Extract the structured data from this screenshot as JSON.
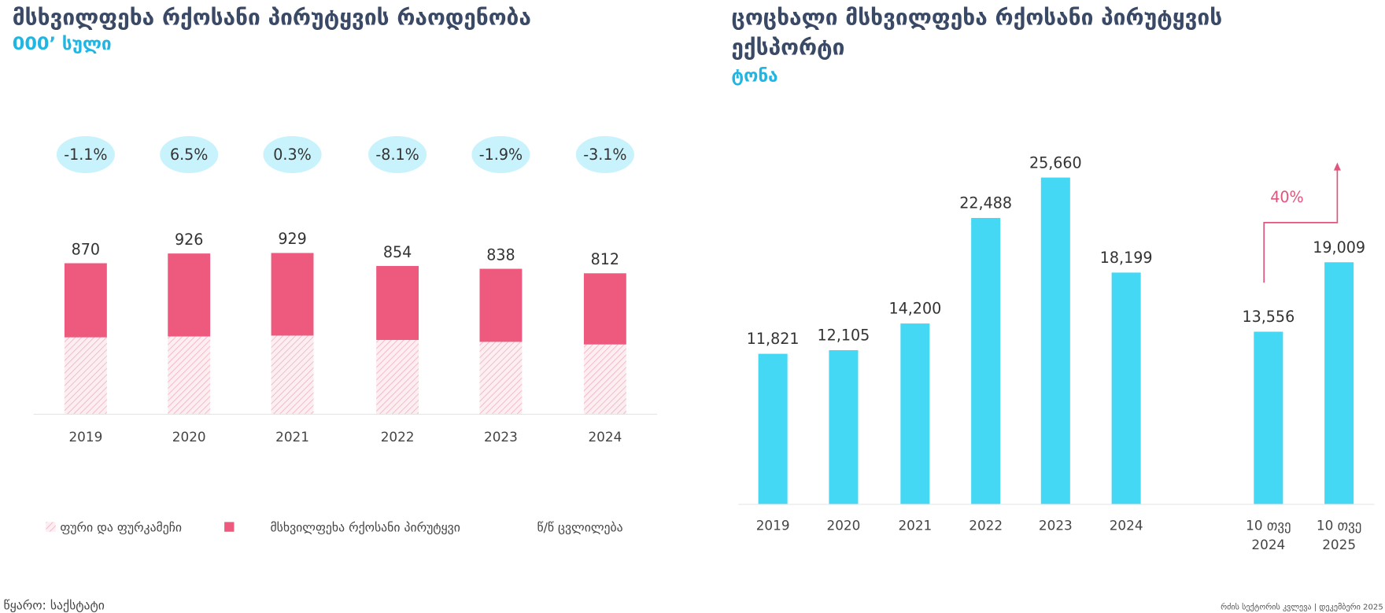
{
  "colors": {
    "pink": "#ee5a7e",
    "hatch": "#f6c3cf",
    "cyan": "#45d8f5",
    "bubble": "#c9f3fc",
    "title": "#3a4a66",
    "subtitle": "#1fb6e4",
    "arrow": "#e0557c"
  },
  "left": {
    "title": "მსხვილფეხა რქოსანი პირუტყვის რაოდენობა",
    "subtitle": "000’ სული"
  },
  "right": {
    "title_line1": "ცოცხალი მსხვილფეხა რქოსანი პირუტყვის",
    "title_line2": "ექსპორტი",
    "subtitle": "ტონა"
  },
  "legend": {
    "hatch": "ფური და ფურკამეჩი",
    "solid": "მსხვილფეხა რქოსანი პირუტყვი",
    "change": "წ/წ ცვლილება"
  },
  "source": "წყარო: საქსტატი",
  "footer": "რძის სექტორის კვლევა  | დეკემბერი 2025",
  "chart_data": [
    {
      "type": "bar",
      "stacked": true,
      "categories": [
        "2019",
        "2020",
        "2021",
        "2022",
        "2023",
        "2024"
      ],
      "totals": [
        870,
        926,
        929,
        854,
        838,
        812
      ],
      "total_labels": [
        "870",
        "926",
        "929",
        "854",
        "838",
        "812"
      ],
      "series": [
        {
          "name": "ფური და ფურკამეჩი",
          "values": [
            443,
            448,
            453,
            428,
            417,
            402
          ]
        },
        {
          "name": "მსხვილფეხა რქოსანი პირუტყვი",
          "values": [
            427,
            478,
            476,
            426,
            421,
            410
          ]
        }
      ],
      "yoy_change": [
        "-1.1%",
        "6.5%",
        "0.3%",
        "-8.1%",
        "-1.9%",
        "-3.1%"
      ],
      "ylim": [
        0,
        1000
      ],
      "grid": false,
      "legend": "bottom"
    },
    {
      "type": "bar",
      "categories": [
        [
          "2019"
        ],
        [
          "2020"
        ],
        [
          "2021"
        ],
        [
          "2022"
        ],
        [
          "2023"
        ],
        [
          "2024"
        ],
        [
          "10 თვე",
          "2024"
        ],
        [
          "10 თვე",
          "2025"
        ]
      ],
      "values": [
        11821,
        12105,
        14200,
        22488,
        25660,
        18199,
        13556,
        19009
      ],
      "value_labels": [
        "11,821",
        "12,105",
        "14,200",
        "22,488",
        "25,660",
        "18,199",
        "13,556",
        "19,009"
      ],
      "annotation": "40%",
      "ylim": [
        0,
        27000
      ],
      "grid": false
    }
  ]
}
